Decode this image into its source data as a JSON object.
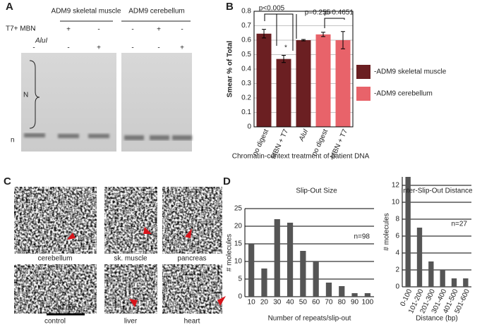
{
  "panel_a": {
    "letter": "A",
    "lanes": [
      "ADM9 skeletal muscle",
      "ADM9 cerebellum"
    ],
    "rows": [
      {
        "label": "T7+ MBN",
        "signs": [
          "-",
          "+",
          "-",
          "-",
          "+",
          "-"
        ]
      },
      {
        "label": "AluI",
        "signs": [
          "-",
          "-",
          "+",
          "-",
          "-",
          "+"
        ]
      }
    ],
    "bands": [
      "N",
      "n"
    ]
  },
  "panel_c": {
    "letter": "C",
    "tissues": [
      "cerebellum",
      "sk. muscle",
      "pancreas",
      "control",
      "liver",
      "heart"
    ],
    "scale": "50 nm"
  },
  "panel_b_letter": "B",
  "panel_d_letter": "D",
  "chart_data": [
    {
      "type": "bar",
      "y_label": "Smear % of Total",
      "x_label": "Chromatin-context treatment of patient DNA",
      "categories": [
        "no digest",
        "MBN + T7",
        "AluI",
        "no digest",
        "MBN + T7"
      ],
      "series": [
        {
          "name": "-ADM9 skeletal muscle",
          "color": "#6b1f22",
          "values": [
            0.645,
            0.47,
            0.6,
            null,
            null
          ],
          "errors": [
            0.03,
            0.025,
            0.005,
            null,
            null
          ]
        },
        {
          "name": "-ADM9 cerebellum",
          "color": "#e8636a",
          "values": [
            null,
            null,
            null,
            0.64,
            0.6
          ],
          "errors": [
            null,
            null,
            null,
            0.015,
            0.06
          ]
        }
      ],
      "ylim": [
        0,
        0.8
      ],
      "yticks": [
        0,
        0.1,
        0.2,
        0.3,
        0.4,
        0.5,
        0.6,
        0.7,
        0.8
      ],
      "grid": true,
      "annotations": [
        "p<0.005",
        "p=0.255",
        "p=0.4651",
        "*"
      ]
    },
    {
      "type": "bar",
      "title": "Slip-Out Size",
      "x_label": "Number of repeats/slip-out",
      "y_label": "# molecules",
      "categories": [
        "10",
        "20",
        "30",
        "40",
        "50",
        "60",
        "70",
        "80",
        "90",
        "100"
      ],
      "values": [
        15,
        8,
        22,
        21,
        13,
        10,
        4,
        3,
        1,
        1
      ],
      "color": "#555555",
      "ylim": [
        0,
        25
      ],
      "yticks": [
        0,
        5,
        10,
        15,
        20,
        25
      ],
      "grid": true,
      "annotations": [
        "n=98"
      ]
    },
    {
      "type": "bar",
      "title": "Inter-Slip-Out Distance",
      "x_label": "Distance (bp)",
      "y_label": "# molecules",
      "categories": [
        "0-100",
        "101-200",
        "201-300",
        "301-400",
        "401-500",
        "501-600"
      ],
      "values": [
        13,
        7,
        3,
        2,
        1,
        1
      ],
      "color": "#555555",
      "ylim": [
        0,
        13
      ],
      "yticks": [
        0,
        2,
        4,
        6,
        8,
        10,
        12
      ],
      "grid": true,
      "annotations": [
        "n=27"
      ]
    }
  ]
}
